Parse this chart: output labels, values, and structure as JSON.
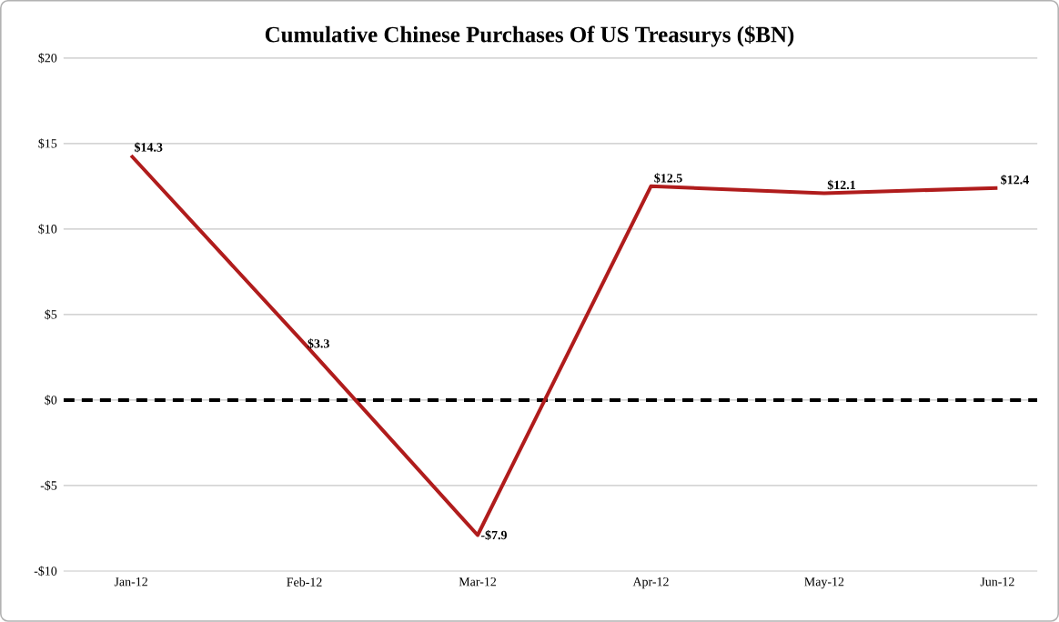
{
  "chart_data": {
    "type": "line",
    "title": "Cumulative Chinese Purchases Of US Treasurys ($BN)",
    "categories": [
      "Jan-12",
      "Feb-12",
      "Mar-12",
      "Apr-12",
      "May-12",
      "Jun-12"
    ],
    "series": [
      {
        "color": "#b01c1c",
        "values": [
          14.3,
          3.3,
          -7.9,
          12.5,
          12.1,
          12.4
        ],
        "value_labels": [
          "$14.3",
          "$3.3",
          "-$7.9",
          "$12.5",
          "$12.1",
          "$12.4"
        ]
      }
    ],
    "ylim": [
      -10,
      20
    ],
    "yticks": [
      {
        "value": -10,
        "label": "-$10"
      },
      {
        "value": -5,
        "label": "-$5"
      },
      {
        "value": 0,
        "label": "$0"
      },
      {
        "value": 5,
        "label": "$5"
      },
      {
        "value": 10,
        "label": "$10"
      },
      {
        "value": 15,
        "label": "$15"
      },
      {
        "value": 20,
        "label": "$20"
      }
    ],
    "grid": "y",
    "marker": "none",
    "line_style": "solid",
    "ref_lines": [
      {
        "axis": "y",
        "value": 0,
        "color": "#000000",
        "line_style": "dashed"
      }
    ]
  }
}
